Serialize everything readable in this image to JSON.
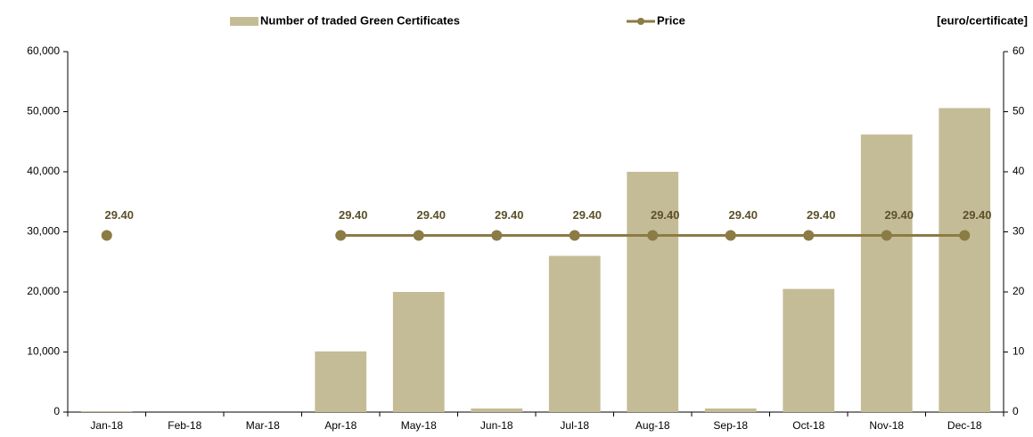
{
  "chart_data": {
    "type": "bar-line",
    "categories": [
      "Jan-18",
      "Feb-18",
      "Mar-18",
      "Apr-18",
      "May-18",
      "Jun-18",
      "Jul-18",
      "Aug-18",
      "Sep-18",
      "Oct-18",
      "Nov-18",
      "Dec-18"
    ],
    "series": [
      {
        "name": "Number of traded Green Certificates",
        "type": "bar",
        "color": "#c4bc96",
        "values": [
          150,
          null,
          null,
          10100,
          20000,
          600,
          26000,
          40000,
          600,
          20500,
          46200,
          50600
        ]
      },
      {
        "name": "Price",
        "type": "line",
        "axis": "y2",
        "color": "#8b7b45",
        "values": [
          29.4,
          null,
          null,
          29.4,
          29.4,
          29.4,
          29.4,
          29.4,
          29.4,
          29.4,
          29.4,
          29.4
        ],
        "value_labels": [
          "29.40",
          null,
          null,
          "29.40",
          "29.40",
          "29.40",
          "29.40",
          "29.40",
          "29.40",
          "29.40",
          "29.40",
          "29.40"
        ]
      }
    ],
    "y2_label": "[euro/certificate]",
    "ylim": [
      0,
      60000
    ],
    "yticks": [
      0,
      {
        "value": 10000,
        "label": "10,000"
      },
      {
        "value": 20000,
        "label": "20,000"
      },
      {
        "value": 30000,
        "label": "30,000"
      },
      {
        "value": 40000,
        "label": "40,000"
      },
      {
        "value": 50000,
        "label": "50,000"
      },
      {
        "value": 60000,
        "label": "60,000"
      }
    ],
    "y2lim": [
      0,
      60
    ],
    "y2ticks": [
      0,
      10,
      20,
      30,
      40,
      50,
      60
    ],
    "grid": false
  }
}
